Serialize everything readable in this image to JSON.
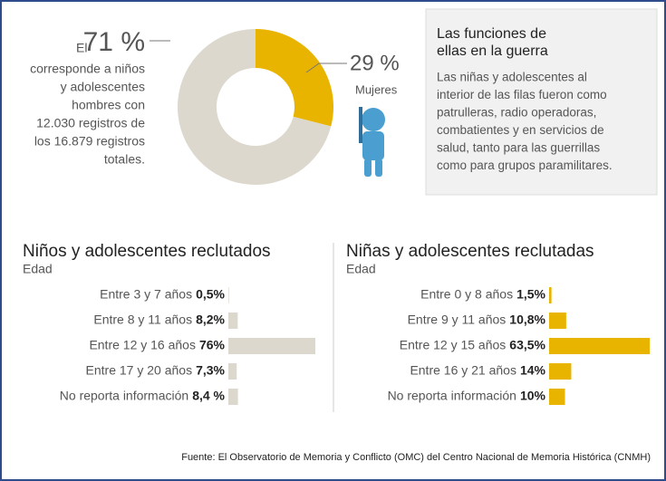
{
  "chart_data": [
    {
      "type": "donut",
      "values": [
        71,
        29
      ],
      "value_labels": [
        "71 %",
        "29 %"
      ],
      "colors": [
        "#dcd8ce",
        "#e8b400"
      ],
      "annotations": {
        "prefix": "El",
        "left_lines": [
          "corresponde a niños",
          "y adolescentes",
          "hombres con",
          "12.030 registros de",
          "los 16.879 registros",
          "totales."
        ],
        "right": "Mujeres"
      }
    },
    {
      "type": "bar",
      "title": "Niños y adolescentes reclutados",
      "subtitle": "Edad",
      "categories": [
        "Entre 3 y 7 años",
        "Entre 8 y 11 años",
        "Entre 12 y 16 años",
        "Entre 17 y 20 años",
        "No reporta información"
      ],
      "values": [
        0.5,
        8.2,
        76,
        7.3,
        8.4
      ],
      "value_labels": [
        "0,5%",
        "8,2%",
        "76%",
        "7,3%",
        "8,4 %"
      ],
      "color": "#dcd8ce"
    },
    {
      "type": "bar",
      "title": "Niñas y adolescentes reclutadas",
      "subtitle": "Edad",
      "categories": [
        "Entre 0 y 8 años",
        "Entre 9 y 11 años",
        "Entre 12 y 15 años",
        "Entre 16 y 21 años",
        "No reporta información"
      ],
      "values": [
        1.5,
        10.8,
        63.5,
        14,
        10
      ],
      "value_labels": [
        "1,5%",
        "10,8%",
        "63,5%",
        "14%",
        "10%"
      ],
      "color": "#e8b400"
    }
  ],
  "sidebar": {
    "title_lines": [
      "Las funciones de",
      "ellas en la guerra"
    ],
    "text_lines": [
      "Las niñas y adolescentes al",
      "interior de las filas fueron como",
      "patrulleras, radio operadoras,",
      "combatientes y en servicios de",
      "salud, tanto para las guerrillas",
      "como para grupos paramilitares."
    ]
  },
  "source": "Fuente: El Observatorio de Memoria y Conflicto (OMC) del Centro Nacional de Memoria Histórica (CNMH)"
}
